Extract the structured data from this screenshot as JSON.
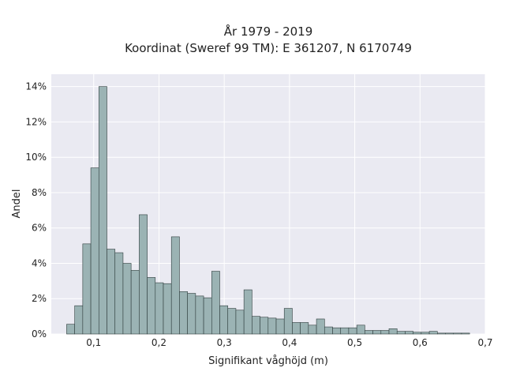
{
  "chart_data": {
    "type": "bar",
    "title_lines": [
      "År 1979 - 2019",
      "Koordinat (Sweref 99 TM): E 361207, N 6170749"
    ],
    "xlabel": "Signifikant våghöjd (m)",
    "ylabel": "Andel",
    "xlim": [
      0.035,
      0.7
    ],
    "ylim": [
      0,
      14.7
    ],
    "x_ticks": [
      0.1,
      0.2,
      0.3,
      0.4,
      0.5,
      0.6,
      0.7
    ],
    "x_tick_labels": [
      "0,1",
      "0,2",
      "0,3",
      "0,4",
      "0,5",
      "0,6",
      "0,7"
    ],
    "y_ticks": [
      0,
      2,
      4,
      6,
      8,
      10,
      12,
      14
    ],
    "y_tick_labels": [
      "0%",
      "2%",
      "4%",
      "6%",
      "8%",
      "10%",
      "12%",
      "14%"
    ],
    "grid": true,
    "bin_start": 0.0585,
    "bin_width": 0.01235,
    "values": [
      0.55,
      1.6,
      5.1,
      9.4,
      14.0,
      4.8,
      4.6,
      4.0,
      3.6,
      6.75,
      3.2,
      2.9,
      2.85,
      5.5,
      2.4,
      2.3,
      2.15,
      2.05,
      3.55,
      1.6,
      1.45,
      1.35,
      2.5,
      1.0,
      0.95,
      0.9,
      0.85,
      1.45,
      0.65,
      0.65,
      0.5,
      0.85,
      0.4,
      0.35,
      0.35,
      0.35,
      0.5,
      0.2,
      0.2,
      0.2,
      0.3,
      0.15,
      0.15,
      0.1,
      0.1,
      0.15,
      0.05,
      0.05,
      0.05,
      0.05
    ],
    "colors": {
      "bar_fill": "#9bb3b4",
      "bar_edge": "#2f3d3d",
      "plot_bg": "#eaeaf2",
      "grid": "#ffffff"
    }
  }
}
